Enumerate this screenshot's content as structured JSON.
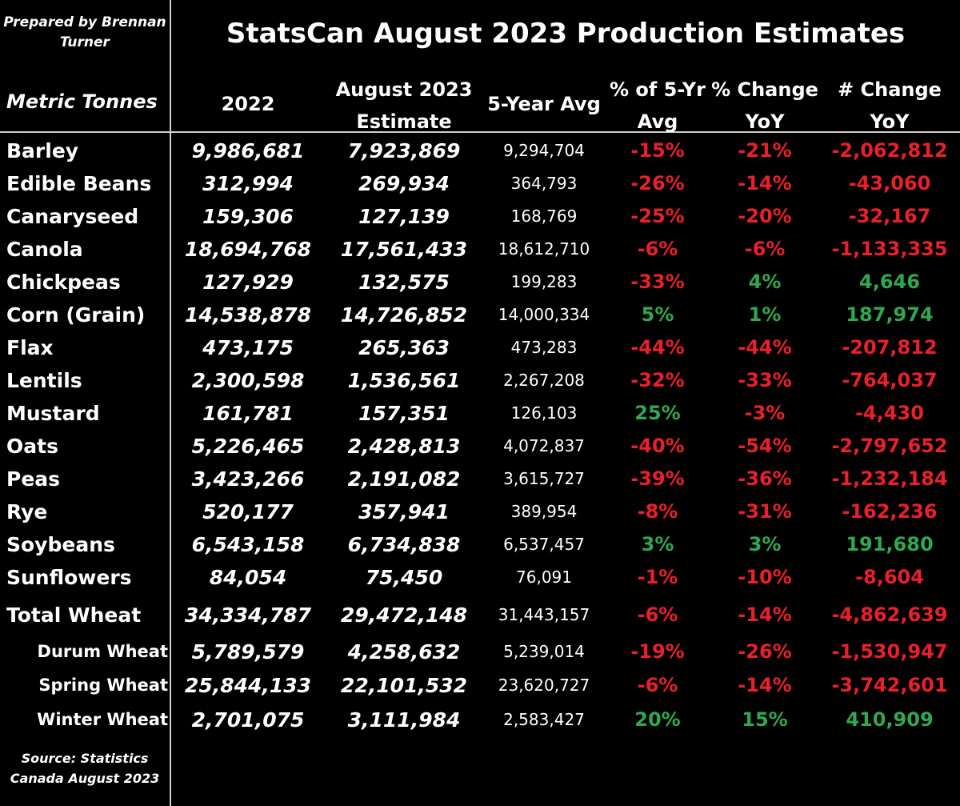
{
  "credit": "Prepared by Brennan Turner",
  "title": "StatsCan August 2023 Production Estimates",
  "unit_label": "Metric Tonnes",
  "source": "Source: Statistics Canada August 2023",
  "colors": {
    "background": "#000000",
    "text": "#ffffff",
    "positive": "#2fa84f",
    "negative": "#e8202a"
  },
  "chart_data": {
    "type": "table",
    "title": "StatsCan August 2023 Production Estimates",
    "columns": [
      {
        "key": "y2022",
        "line1": "2022",
        "line2": ""
      },
      {
        "key": "aug2023",
        "line1": "August 2023",
        "line2": "Estimate"
      },
      {
        "key": "avg5",
        "line1": "5-Year Avg",
        "line2": ""
      },
      {
        "key": "pct5",
        "line1": "% of 5-Yr",
        "line2": "Avg"
      },
      {
        "key": "pctyoy",
        "line1": "% Change",
        "line2": "YoY"
      },
      {
        "key": "numyoy",
        "line1": "# Change",
        "line2": "YoY"
      }
    ],
    "rows": [
      {
        "crop": "Barley",
        "sub": false,
        "y2022": "9,986,681",
        "aug2023": "7,923,869",
        "avg5": "9,294,704",
        "pct5": "-15%",
        "pctyoy": "-21%",
        "numyoy": "-2,062,812"
      },
      {
        "crop": "Edible Beans",
        "sub": false,
        "y2022": "312,994",
        "aug2023": "269,934",
        "avg5": "364,793",
        "pct5": "-26%",
        "pctyoy": "-14%",
        "numyoy": "-43,060"
      },
      {
        "crop": "Canaryseed",
        "sub": false,
        "y2022": "159,306",
        "aug2023": "127,139",
        "avg5": "168,769",
        "pct5": "-25%",
        "pctyoy": "-20%",
        "numyoy": "-32,167"
      },
      {
        "crop": "Canola",
        "sub": false,
        "y2022": "18,694,768",
        "aug2023": "17,561,433",
        "avg5": "18,612,710",
        "pct5": "-6%",
        "pctyoy": "-6%",
        "numyoy": "-1,133,335"
      },
      {
        "crop": "Chickpeas",
        "sub": false,
        "y2022": "127,929",
        "aug2023": "132,575",
        "avg5": "199,283",
        "pct5": "-33%",
        "pctyoy": "4%",
        "numyoy": "4,646"
      },
      {
        "crop": "Corn (Grain)",
        "sub": false,
        "y2022": "14,538,878",
        "aug2023": "14,726,852",
        "avg5": "14,000,334",
        "pct5": "5%",
        "pctyoy": "1%",
        "numyoy": "187,974"
      },
      {
        "crop": "Flax",
        "sub": false,
        "y2022": "473,175",
        "aug2023": "265,363",
        "avg5": "473,283",
        "pct5": "-44%",
        "pctyoy": "-44%",
        "numyoy": "-207,812"
      },
      {
        "crop": "Lentils",
        "sub": false,
        "y2022": "2,300,598",
        "aug2023": "1,536,561",
        "avg5": "2,267,208",
        "pct5": "-32%",
        "pctyoy": "-33%",
        "numyoy": "-764,037"
      },
      {
        "crop": "Mustard",
        "sub": false,
        "y2022": "161,781",
        "aug2023": "157,351",
        "avg5": "126,103",
        "pct5": "25%",
        "pctyoy": "-3%",
        "numyoy": "-4,430"
      },
      {
        "crop": "Oats",
        "sub": false,
        "y2022": "5,226,465",
        "aug2023": "2,428,813",
        "avg5": "4,072,837",
        "pct5": "-40%",
        "pctyoy": "-54%",
        "numyoy": "-2,797,652"
      },
      {
        "crop": "Peas",
        "sub": false,
        "y2022": "3,423,266",
        "aug2023": "2,191,082",
        "avg5": "3,615,727",
        "pct5": "-39%",
        "pctyoy": "-36%",
        "numyoy": "-1,232,184"
      },
      {
        "crop": "Rye",
        "sub": false,
        "y2022": "520,177",
        "aug2023": "357,941",
        "avg5": "389,954",
        "pct5": "-8%",
        "pctyoy": "-31%",
        "numyoy": "-162,236"
      },
      {
        "crop": "Soybeans",
        "sub": false,
        "y2022": "6,543,158",
        "aug2023": "6,734,838",
        "avg5": "6,537,457",
        "pct5": "3%",
        "pctyoy": "3%",
        "numyoy": "191,680"
      },
      {
        "crop": "Sunflowers",
        "sub": false,
        "y2022": "84,054",
        "aug2023": "75,450",
        "avg5": "76,091",
        "pct5": "-1%",
        "pctyoy": "-10%",
        "numyoy": "-8,604"
      },
      {
        "crop": "Total Wheat",
        "sub": false,
        "y2022": "34,334,787",
        "aug2023": "29,472,148",
        "avg5": "31,443,157",
        "pct5": "-6%",
        "pctyoy": "-14%",
        "numyoy": "-4,862,639"
      },
      {
        "crop": "Durum Wheat",
        "sub": true,
        "y2022": "5,789,579",
        "aug2023": "4,258,632",
        "avg5": "5,239,014",
        "pct5": "-19%",
        "pctyoy": "-26%",
        "numyoy": "-1,530,947"
      },
      {
        "crop": "Spring Wheat",
        "sub": true,
        "y2022": "25,844,133",
        "aug2023": "22,101,532",
        "avg5": "23,620,727",
        "pct5": "-6%",
        "pctyoy": "-14%",
        "numyoy": "-3,742,601"
      },
      {
        "crop": "Winter Wheat",
        "sub": true,
        "y2022": "2,701,075",
        "aug2023": "3,111,984",
        "avg5": "2,583,427",
        "pct5": "20%",
        "pctyoy": "15%",
        "numyoy": "410,909"
      }
    ]
  }
}
